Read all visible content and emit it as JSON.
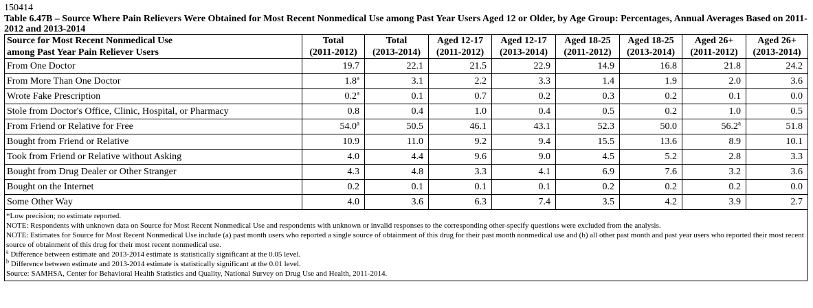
{
  "document": {
    "table_id": "150414",
    "title": "Table 6.47B – Source Where Pain Relievers Were Obtained for Most Recent Nonmedical Use among Past Year Users Aged 12 or Older, by Age Group: Percentages, Annual Averages Based on 2011-2012 and 2013-2014"
  },
  "table": {
    "header": {
      "source_line1": "Source for Most Recent Nonmedical Use",
      "source_line2": "among Past Year Pain Reliever Users",
      "columns": [
        {
          "line1": "Total",
          "line2": "(2011-2012)"
        },
        {
          "line1": "Total",
          "line2": "(2013-2014)"
        },
        {
          "line1": "Aged 12-17",
          "line2": "(2011-2012)"
        },
        {
          "line1": "Aged 12-17",
          "line2": "(2013-2014)"
        },
        {
          "line1": "Aged 18-25",
          "line2": "(2011-2012)"
        },
        {
          "line1": "Aged 18-25",
          "line2": "(2013-2014)"
        },
        {
          "line1": "Aged 26+",
          "line2": "(2011-2012)"
        },
        {
          "line1": "Aged 26+",
          "line2": "(2013-2014)"
        }
      ]
    },
    "rows": [
      {
        "label": "From One Doctor",
        "cells": [
          {
            "v": "19.7",
            "sup": ""
          },
          {
            "v": "22.1",
            "sup": ""
          },
          {
            "v": "21.5",
            "sup": ""
          },
          {
            "v": "22.9",
            "sup": ""
          },
          {
            "v": "14.9",
            "sup": ""
          },
          {
            "v": "16.8",
            "sup": ""
          },
          {
            "v": "21.8",
            "sup": ""
          },
          {
            "v": "24.2",
            "sup": ""
          }
        ]
      },
      {
        "label": "From More Than One Doctor",
        "cells": [
          {
            "v": "1.8",
            "sup": "a"
          },
          {
            "v": "3.1",
            "sup": ""
          },
          {
            "v": "2.2",
            "sup": ""
          },
          {
            "v": "3.3",
            "sup": ""
          },
          {
            "v": "1.4",
            "sup": ""
          },
          {
            "v": "1.9",
            "sup": ""
          },
          {
            "v": "2.0",
            "sup": ""
          },
          {
            "v": "3.6",
            "sup": ""
          }
        ]
      },
      {
        "label": "Wrote Fake Prescription",
        "cells": [
          {
            "v": "0.2",
            "sup": "a"
          },
          {
            "v": "0.1",
            "sup": ""
          },
          {
            "v": "0.7",
            "sup": ""
          },
          {
            "v": "0.2",
            "sup": ""
          },
          {
            "v": "0.3",
            "sup": ""
          },
          {
            "v": "0.2",
            "sup": ""
          },
          {
            "v": "0.1",
            "sup": ""
          },
          {
            "v": "0.0",
            "sup": ""
          }
        ]
      },
      {
        "label": "Stole from Doctor's Office, Clinic, Hospital, or Pharmacy",
        "cells": [
          {
            "v": "0.8",
            "sup": ""
          },
          {
            "v": "0.4",
            "sup": ""
          },
          {
            "v": "1.0",
            "sup": ""
          },
          {
            "v": "0.4",
            "sup": ""
          },
          {
            "v": "0.5",
            "sup": ""
          },
          {
            "v": "0.2",
            "sup": ""
          },
          {
            "v": "1.0",
            "sup": ""
          },
          {
            "v": "0.5",
            "sup": ""
          }
        ]
      },
      {
        "label": "From Friend or Relative for Free",
        "cells": [
          {
            "v": "54.0",
            "sup": "a"
          },
          {
            "v": "50.5",
            "sup": ""
          },
          {
            "v": "46.1",
            "sup": ""
          },
          {
            "v": "43.1",
            "sup": ""
          },
          {
            "v": "52.3",
            "sup": ""
          },
          {
            "v": "50.0",
            "sup": ""
          },
          {
            "v": "56.2",
            "sup": "a"
          },
          {
            "v": "51.8",
            "sup": ""
          }
        ]
      },
      {
        "label": "Bought from Friend or Relative",
        "cells": [
          {
            "v": "10.9",
            "sup": ""
          },
          {
            "v": "11.0",
            "sup": ""
          },
          {
            "v": "9.2",
            "sup": ""
          },
          {
            "v": "9.4",
            "sup": ""
          },
          {
            "v": "15.5",
            "sup": ""
          },
          {
            "v": "13.6",
            "sup": ""
          },
          {
            "v": "8.9",
            "sup": ""
          },
          {
            "v": "10.1",
            "sup": ""
          }
        ]
      },
      {
        "label": "Took from Friend or Relative without Asking",
        "cells": [
          {
            "v": "4.0",
            "sup": ""
          },
          {
            "v": "4.4",
            "sup": ""
          },
          {
            "v": "9.6",
            "sup": ""
          },
          {
            "v": "9.0",
            "sup": ""
          },
          {
            "v": "4.5",
            "sup": ""
          },
          {
            "v": "5.2",
            "sup": ""
          },
          {
            "v": "2.8",
            "sup": ""
          },
          {
            "v": "3.3",
            "sup": ""
          }
        ]
      },
      {
        "label": "Bought from Drug Dealer or Other Stranger",
        "cells": [
          {
            "v": "4.3",
            "sup": ""
          },
          {
            "v": "4.8",
            "sup": ""
          },
          {
            "v": "3.3",
            "sup": ""
          },
          {
            "v": "4.1",
            "sup": ""
          },
          {
            "v": "6.9",
            "sup": ""
          },
          {
            "v": "7.6",
            "sup": ""
          },
          {
            "v": "3.2",
            "sup": ""
          },
          {
            "v": "3.6",
            "sup": ""
          }
        ]
      },
      {
        "label": "Bought on the Internet",
        "cells": [
          {
            "v": "0.2",
            "sup": ""
          },
          {
            "v": "0.1",
            "sup": ""
          },
          {
            "v": "0.1",
            "sup": ""
          },
          {
            "v": "0.1",
            "sup": ""
          },
          {
            "v": "0.2",
            "sup": ""
          },
          {
            "v": "0.2",
            "sup": ""
          },
          {
            "v": "0.2",
            "sup": ""
          },
          {
            "v": "0.0",
            "sup": ""
          }
        ]
      },
      {
        "label": "Some Other Way",
        "cells": [
          {
            "v": "4.0",
            "sup": ""
          },
          {
            "v": "3.6",
            "sup": ""
          },
          {
            "v": "6.3",
            "sup": ""
          },
          {
            "v": "7.4",
            "sup": ""
          },
          {
            "v": "3.5",
            "sup": ""
          },
          {
            "v": "4.2",
            "sup": ""
          },
          {
            "v": "3.9",
            "sup": ""
          },
          {
            "v": "2.7",
            "sup": ""
          }
        ]
      }
    ]
  },
  "notes": {
    "low_precision": "*Low precision; no estimate reported.",
    "note1": "NOTE: Respondents with unknown data on Source for Most Recent Nonmedical Use and respondents with unknown or invalid responses to the corresponding other-specify questions were excluded from the analysis.",
    "note2": "NOTE: Estimates for Source for Most Recent Nonmedical Use include (a) past month users who reported a single source of obtainment of this drug for their past month nonmedical use and (b) all other past month and past year users who reported their most recent source of obtainment of this drug for their most recent nonmedical use.",
    "footnote_a_mark": "a",
    "footnote_a": "Difference between estimate and 2013-2014 estimate is statistically significant at the 0.05 level.",
    "footnote_b_mark": "b",
    "footnote_b": "Difference between estimate and 2013-2014 estimate is statistically significant at the 0.01 level.",
    "source": "Source: SAMHSA, Center for Behavioral Health Statistics and Quality, National Survey on Drug Use and Health, 2011-2014."
  }
}
